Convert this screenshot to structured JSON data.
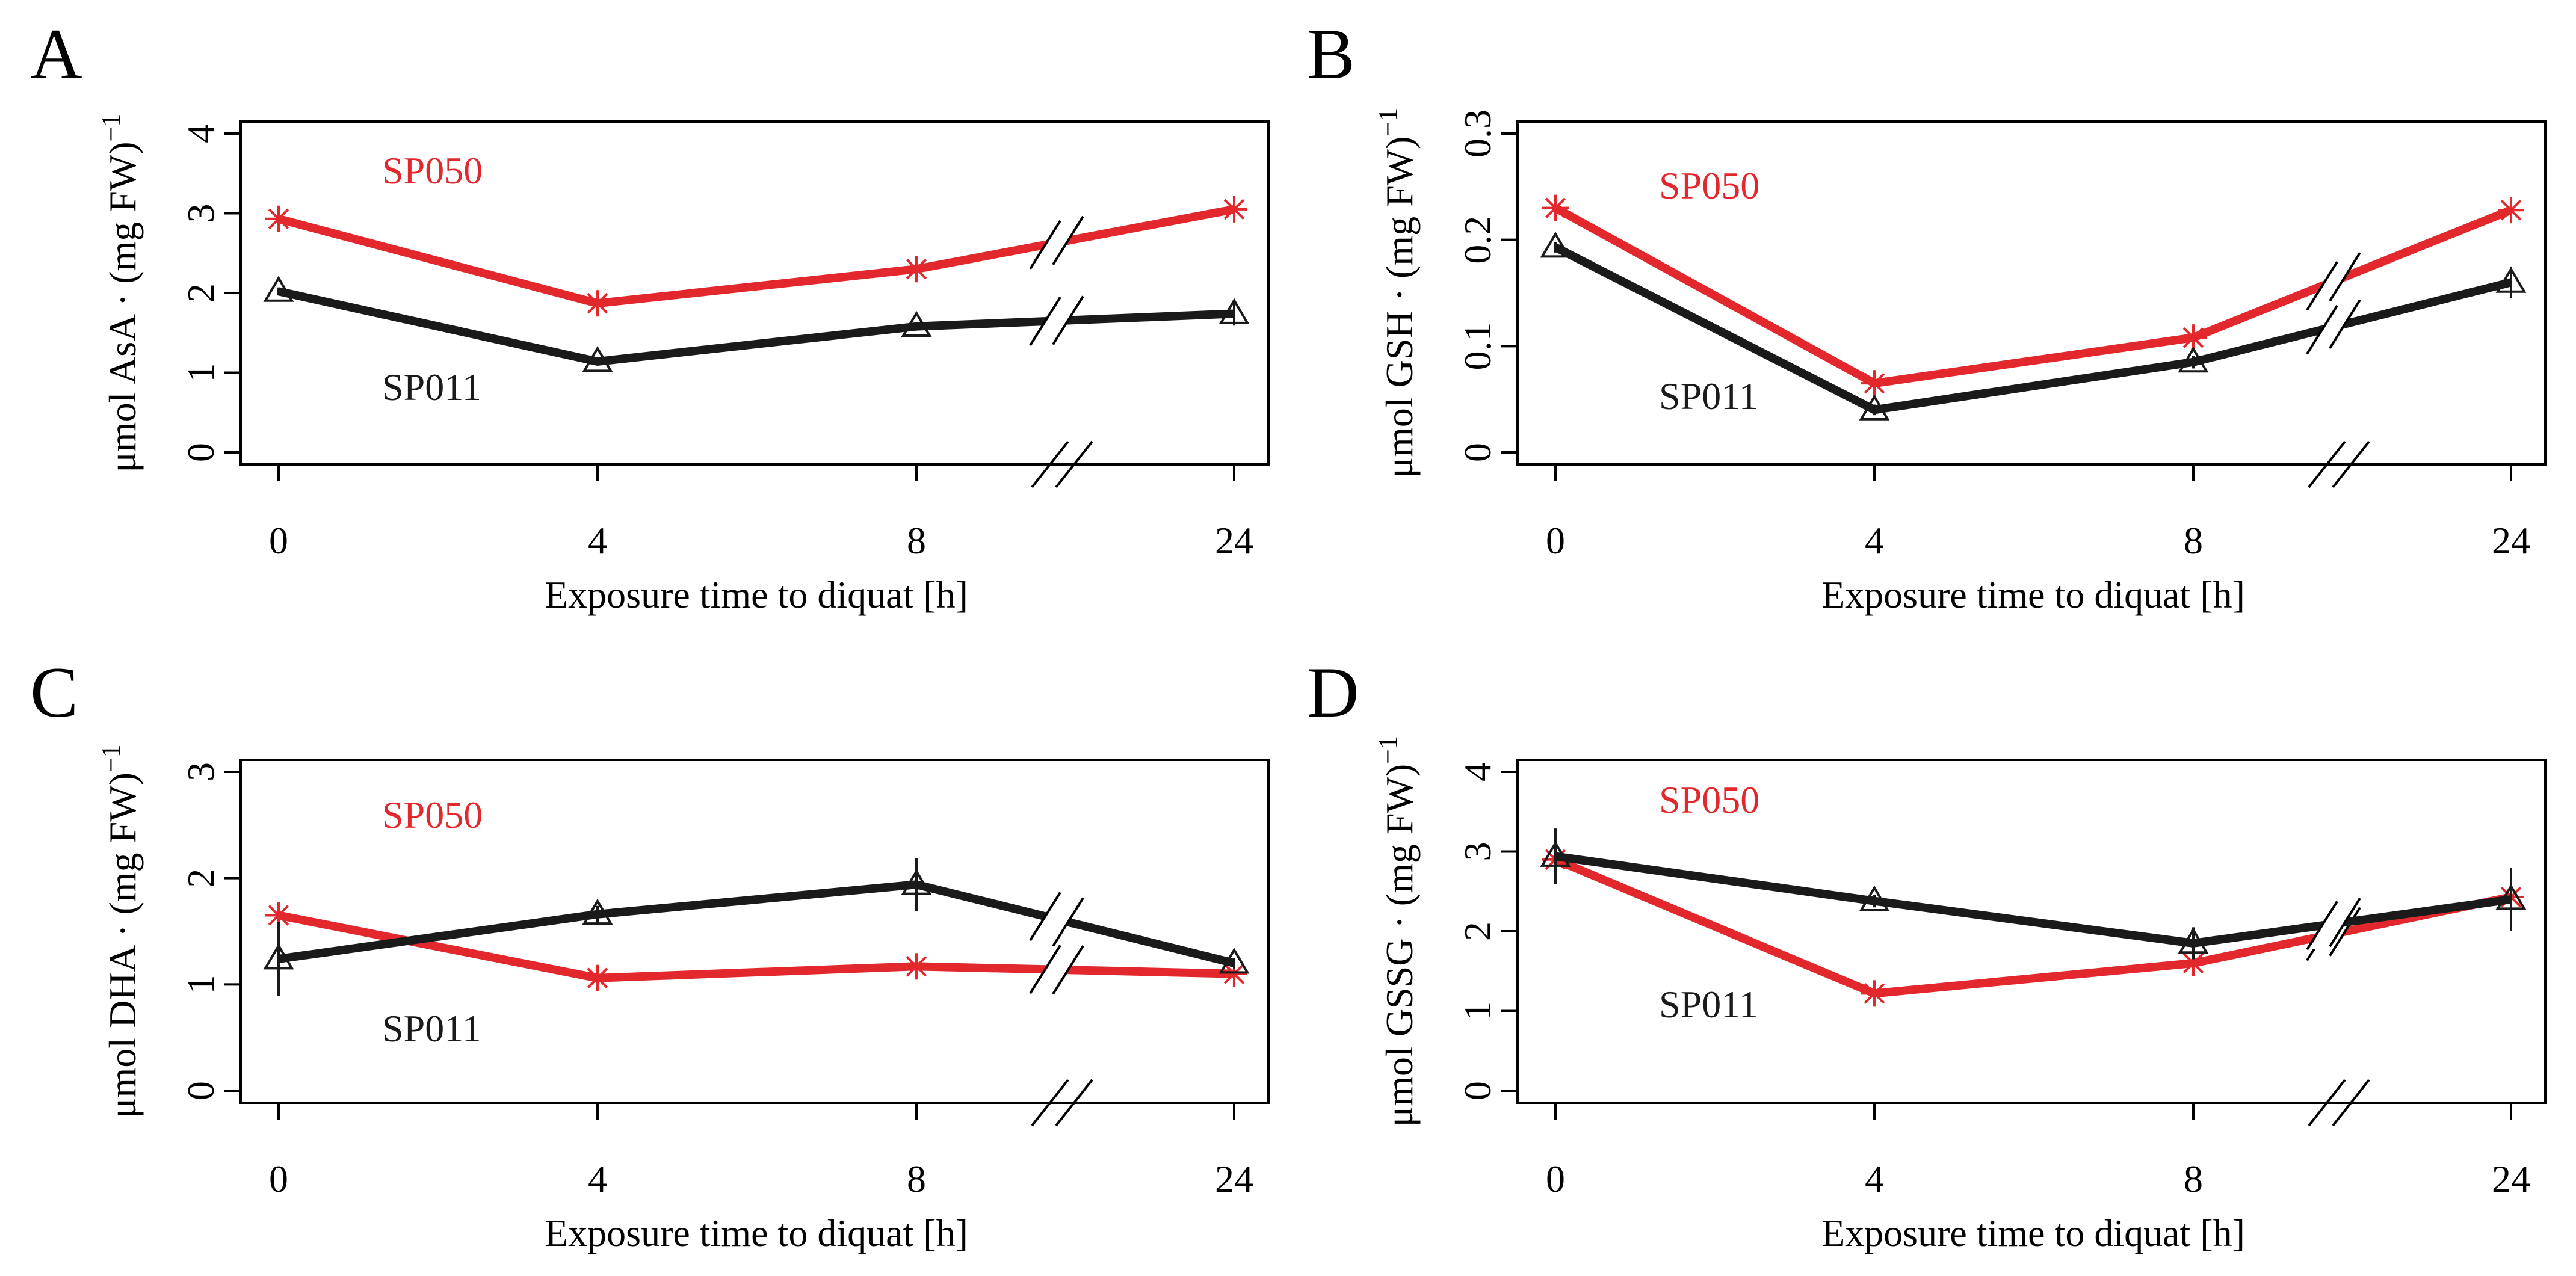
{
  "figure": {
    "panels": [
      {
        "letter": "A",
        "y_label_main": "μmol AsA · (mg FW)",
        "y_label_sup": "−1"
      },
      {
        "letter": "B",
        "y_label_main": "μmol GSH · (mg FW)",
        "y_label_sup": "−1"
      },
      {
        "letter": "C",
        "y_label_main": "μmol DHA · (mg FW)",
        "y_label_sup": "−1"
      },
      {
        "letter": "D",
        "y_label_main": "μmol GSSG · (mg FW)",
        "y_label_sup": "−1"
      }
    ],
    "colors": {
      "SP050": "#e3282d",
      "SP011": "#1a1a1a"
    }
  },
  "chart_data": [
    {
      "panel": "A",
      "type": "line",
      "xlabel": "Exposure time to diquat [h]",
      "ylabel": "μmol AsA · (mg FW)−1",
      "x_categories": [
        "0",
        "4",
        "8",
        "24"
      ],
      "x_break_between": [
        "8",
        "24"
      ],
      "ylim": [
        0,
        4
      ],
      "yticks": [
        0,
        1,
        2,
        3,
        4
      ],
      "series": [
        {
          "name": "SP050",
          "marker": "asterisk",
          "values": [
            2.93,
            1.87,
            2.3,
            3.05
          ],
          "errors": [
            0.05,
            0.05,
            0.15,
            0.08
          ]
        },
        {
          "name": "SP011",
          "marker": "triangle",
          "values": [
            2.02,
            1.14,
            1.58,
            1.74
          ],
          "errors": [
            0.05,
            0.05,
            0.05,
            0.15
          ]
        }
      ]
    },
    {
      "panel": "B",
      "type": "line",
      "xlabel": "Exposure time to diquat [h]",
      "ylabel": "μmol GSH · (mg FW)−1",
      "x_categories": [
        "0",
        "4",
        "8",
        "24"
      ],
      "x_break_between": [
        "8",
        "24"
      ],
      "ylim": [
        0,
        0.3
      ],
      "yticks": [
        0,
        0.1,
        0.2,
        0.3
      ],
      "series": [
        {
          "name": "SP050",
          "marker": "asterisk",
          "values": [
            0.23,
            0.065,
            0.108,
            0.228
          ],
          "errors": [
            0.005,
            0.005,
            0.006,
            0.006
          ]
        },
        {
          "name": "SP011",
          "marker": "triangle",
          "values": [
            0.193,
            0.04,
            0.085,
            0.16
          ],
          "errors": [
            0.005,
            0.005,
            0.006,
            0.015
          ]
        }
      ]
    },
    {
      "panel": "C",
      "type": "line",
      "xlabel": "Exposure time to diquat [h]",
      "ylabel": "μmol DHA · (mg FW)−1",
      "x_categories": [
        "0",
        "4",
        "8",
        "24"
      ],
      "x_break_between": [
        "8",
        "24"
      ],
      "ylim": [
        0,
        3
      ],
      "yticks": [
        0,
        1,
        2,
        3
      ],
      "series": [
        {
          "name": "SP050",
          "marker": "asterisk",
          "values": [
            1.65,
            1.06,
            1.17,
            1.1
          ],
          "errors": [
            0.05,
            0.04,
            0.05,
            0.12
          ]
        },
        {
          "name": "SP011",
          "marker": "triangle",
          "values": [
            1.24,
            1.66,
            1.94,
            1.2
          ],
          "errors": [
            0.35,
            0.08,
            0.25,
            0.05
          ]
        }
      ]
    },
    {
      "panel": "D",
      "type": "line",
      "xlabel": "Exposure time to diquat [h]",
      "ylabel": "μmol GSSG · (mg FW)−1",
      "x_categories": [
        "0",
        "4",
        "8",
        "24"
      ],
      "x_break_between": [
        "8",
        "24"
      ],
      "ylim": [
        0,
        4
      ],
      "yticks": [
        0,
        1,
        2,
        3,
        4
      ],
      "series": [
        {
          "name": "SP050",
          "marker": "asterisk",
          "values": [
            2.9,
            1.22,
            1.6,
            2.43
          ],
          "errors": [
            0.1,
            0.05,
            0.05,
            0.1
          ]
        },
        {
          "name": "SP011",
          "marker": "triangle",
          "values": [
            2.94,
            2.38,
            1.85,
            2.4
          ],
          "errors": [
            0.35,
            0.08,
            0.2,
            0.4
          ]
        }
      ]
    }
  ]
}
